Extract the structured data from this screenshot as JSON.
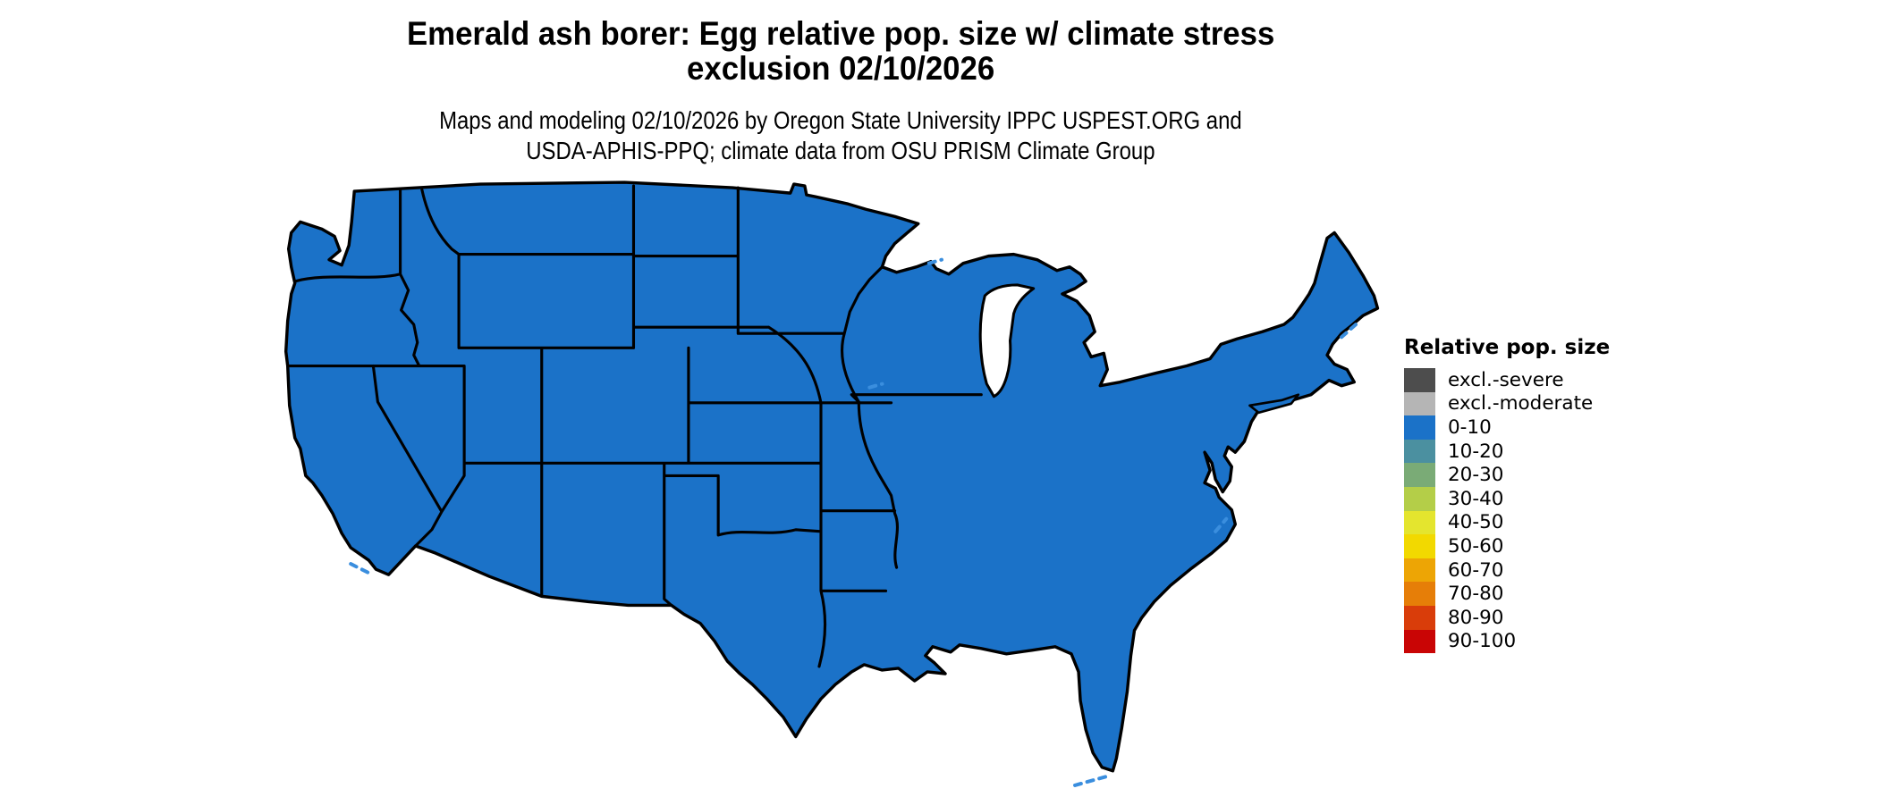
{
  "title": {
    "line1": "Emerald ash borer: Egg relative pop. size w/ climate stress",
    "line2": "exclusion 02/10/2026"
  },
  "subtitle": {
    "line1": "Maps and modeling 02/10/2026 by Oregon State University IPPC USPEST.ORG and",
    "line2": "USDA-APHIS-PPQ; climate data from OSU PRISM Climate Group"
  },
  "legend": {
    "title": "Relative pop. size",
    "items": [
      {
        "label": "excl.-severe",
        "color": "#4d4d4d"
      },
      {
        "label": "excl.-moderate",
        "color": "#b5b5b5"
      },
      {
        "label": "0-10",
        "color": "#1b72c8"
      },
      {
        "label": "10-20",
        "color": "#4b90a0"
      },
      {
        "label": "20-30",
        "color": "#7aab76"
      },
      {
        "label": "30-40",
        "color": "#b4ce48"
      },
      {
        "label": "40-50",
        "color": "#e4e52e"
      },
      {
        "label": "50-60",
        "color": "#f2d900"
      },
      {
        "label": "60-70",
        "color": "#eda505"
      },
      {
        "label": "70-80",
        "color": "#e67e08"
      },
      {
        "label": "80-90",
        "color": "#d93d0a"
      },
      {
        "label": "90-100",
        "color": "#c90505"
      }
    ]
  },
  "map": {
    "region": "Conterminous United States",
    "fill_category": "0-10",
    "fill_color": "#1b72c8",
    "border_color": "#000000",
    "water_accent_color": "#3a8ede",
    "lake_fill": "#ffffff",
    "background": "#ffffff"
  }
}
